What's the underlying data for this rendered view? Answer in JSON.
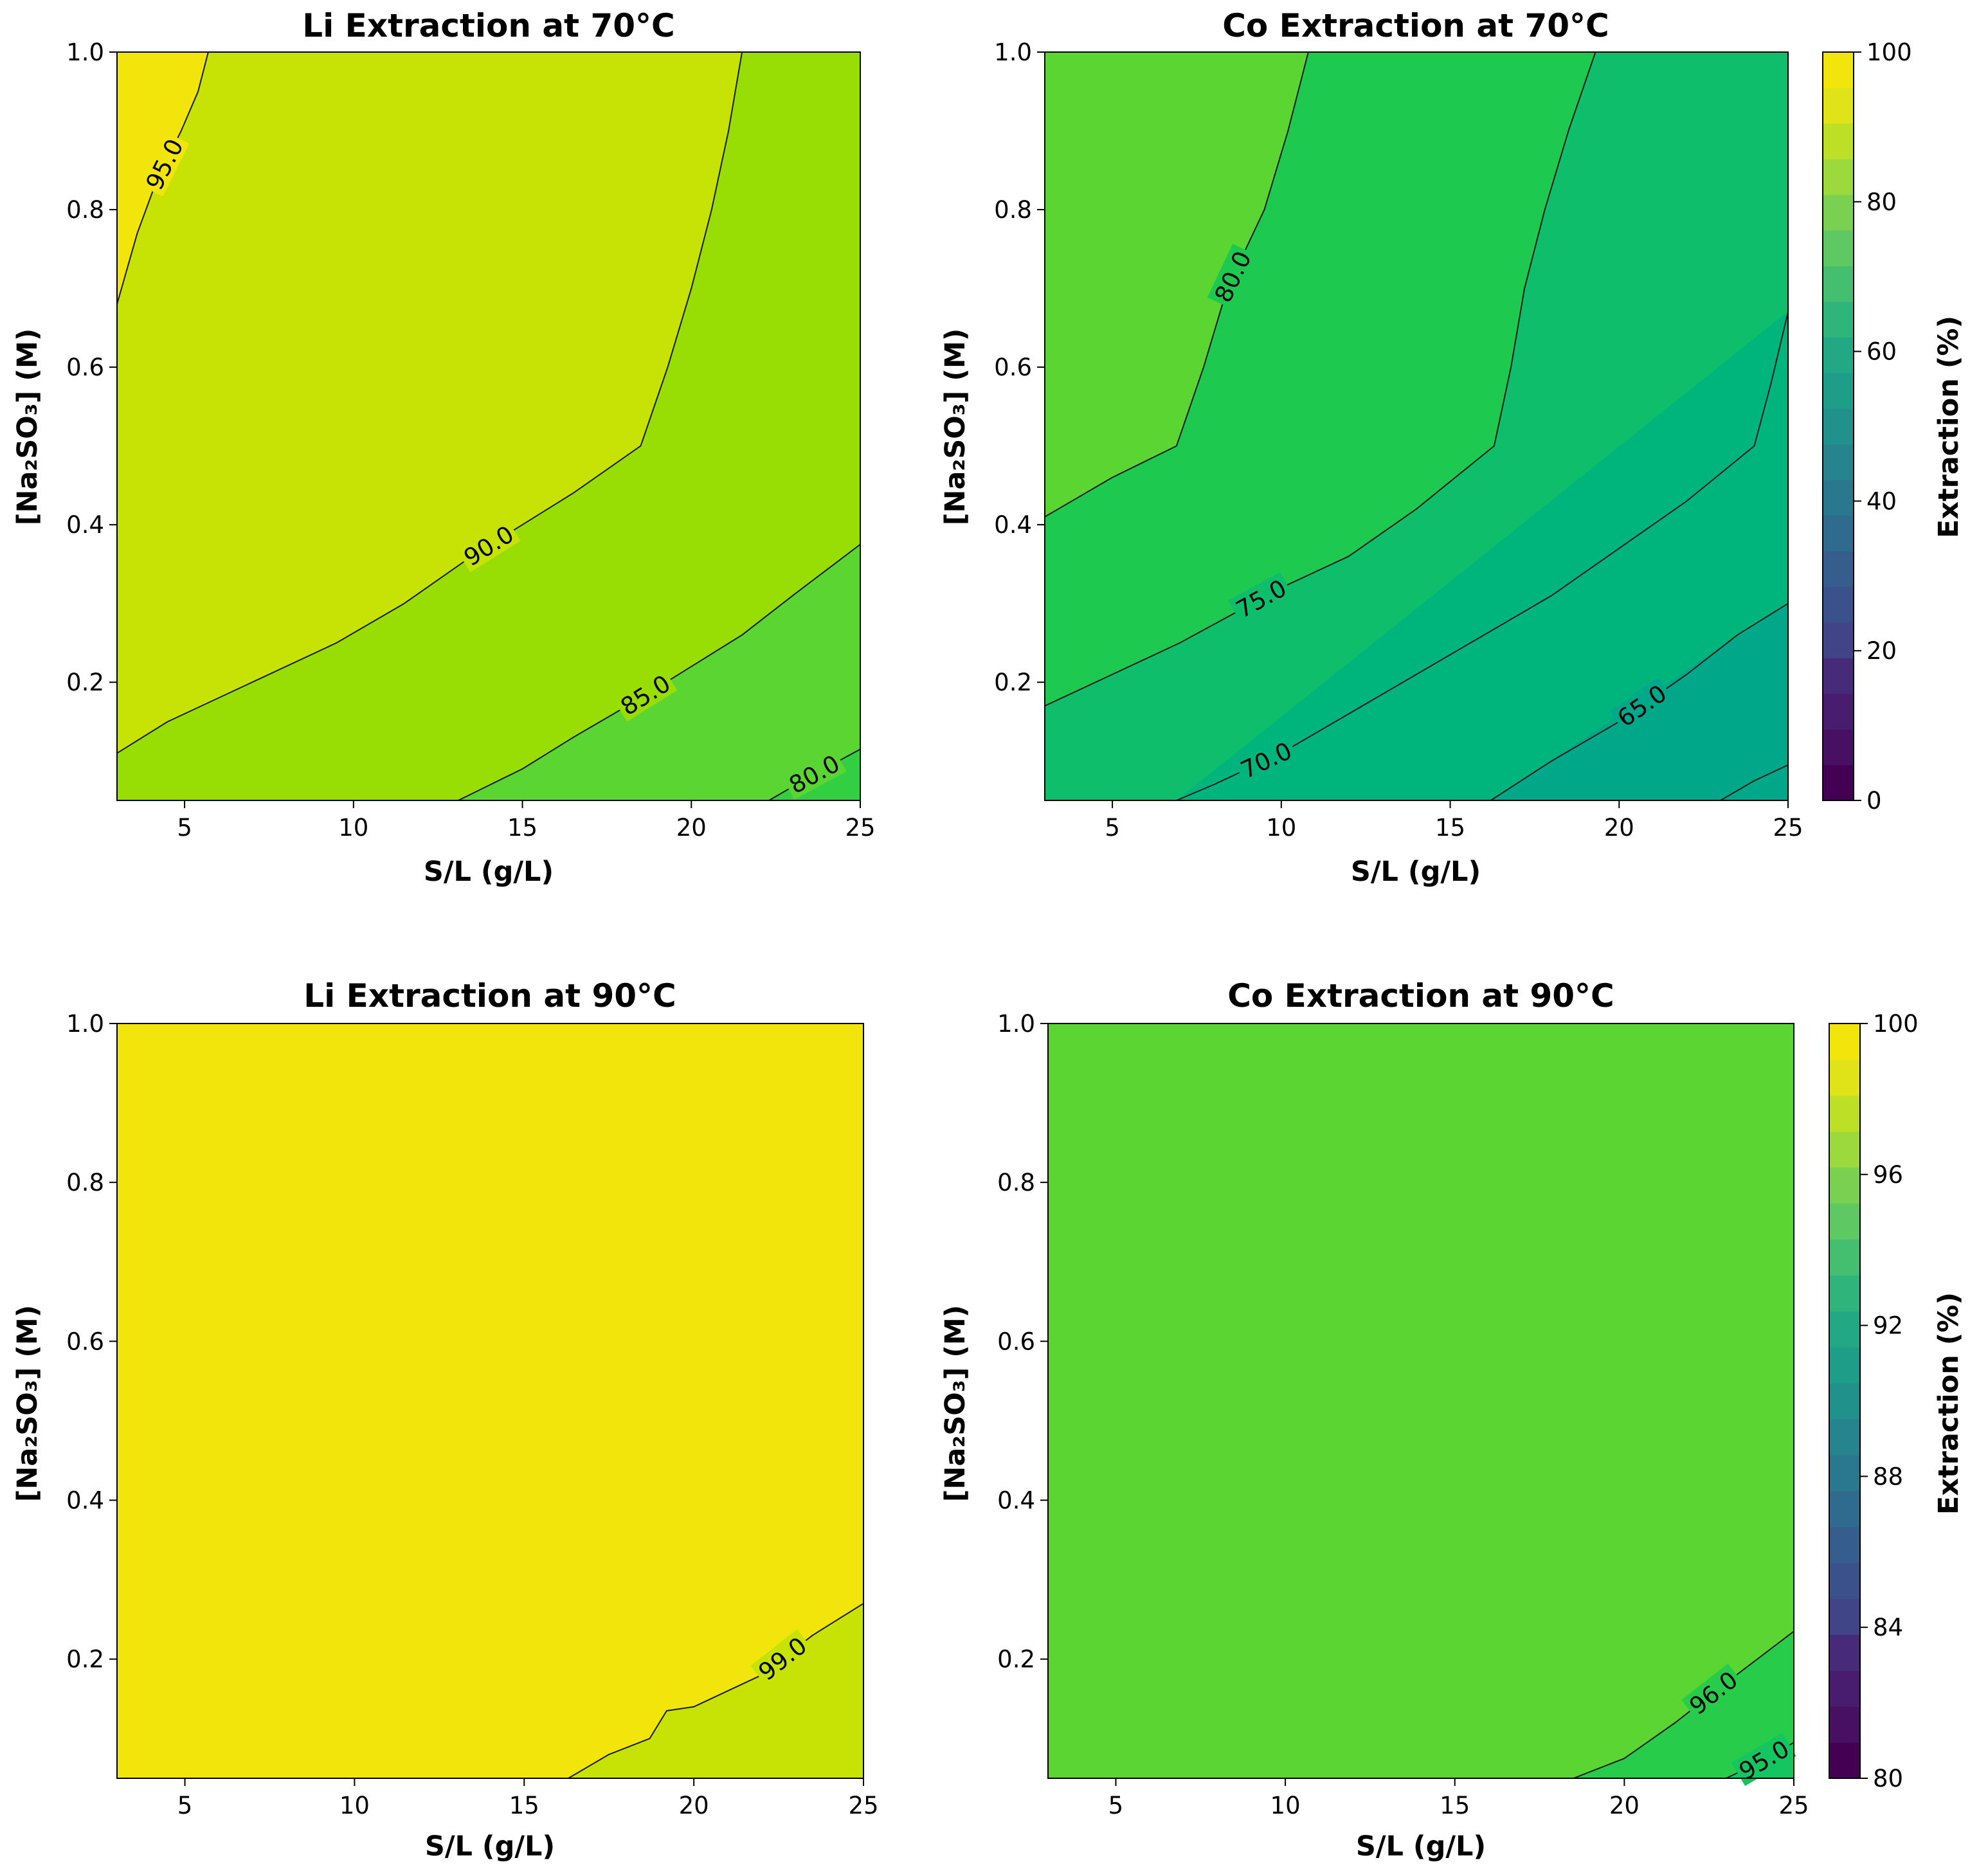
{
  "chart_data": [
    {
      "type": "contour",
      "title": "Li Extraction at 70°C",
      "xlabel": "S/L (g/L)",
      "ylabel": "[Na₂SO₃] (M)",
      "xlim": [
        3,
        25
      ],
      "ylim": [
        0.05,
        1.0
      ],
      "xticks": [
        "5",
        "10",
        "15",
        "20",
        "25"
      ],
      "yticks": [
        "0.2",
        "0.4",
        "0.6",
        "0.8",
        "1.0"
      ],
      "base_color": "#f1e50c",
      "regions": [
        {
          "level": "90-95",
          "color": "#c7e305"
        },
        {
          "level": "85-90",
          "color": "#98dd04"
        },
        {
          "level": "80-85",
          "color": "#5bd532"
        },
        {
          "level": "75-80",
          "color": "#33cf43"
        }
      ],
      "contours": [
        {
          "level": 95.0,
          "label": "95.0",
          "points": [
            [
              3,
              0.68
            ],
            [
              3.6,
              0.77
            ],
            [
              4.2,
              0.84
            ],
            [
              4.9,
              0.9
            ],
            [
              5.4,
              0.95
            ],
            [
              5.7,
              1.0
            ]
          ]
        },
        {
          "level": 90.0,
          "label": "90.0",
          "points": [
            [
              3,
              0.11
            ],
            [
              4.5,
              0.15
            ],
            [
              7,
              0.2
            ],
            [
              9.5,
              0.25
            ],
            [
              11.5,
              0.3
            ],
            [
              13.5,
              0.36
            ],
            [
              15,
              0.4
            ],
            [
              16.5,
              0.44
            ],
            [
              18.5,
              0.5
            ],
            [
              19.3,
              0.6
            ],
            [
              20,
              0.7
            ],
            [
              20.6,
              0.8
            ],
            [
              21.1,
              0.9
            ],
            [
              21.5,
              1.0
            ]
          ]
        },
        {
          "level": 85.0,
          "label": "85.0",
          "points": [
            [
              13.1,
              0.05
            ],
            [
              15,
              0.09
            ],
            [
              16.5,
              0.13
            ],
            [
              18.5,
              0.18
            ],
            [
              20,
              0.22
            ],
            [
              21.5,
              0.26
            ],
            [
              23,
              0.31
            ],
            [
              25,
              0.375
            ]
          ]
        },
        {
          "level": 80.0,
          "label": "80.0",
          "points": [
            [
              22.3,
              0.05
            ],
            [
              23.5,
              0.08
            ],
            [
              25,
              0.115
            ]
          ]
        }
      ]
    },
    {
      "type": "contour",
      "title": "Co Extraction at 70°C",
      "xlabel": "S/L (g/L)",
      "ylabel": "[Na₂SO₃] (M)",
      "xlim": [
        3,
        25
      ],
      "ylim": [
        0.05,
        1.0
      ],
      "xticks": [
        "5",
        "10",
        "15",
        "20",
        "25"
      ],
      "yticks": [
        "0.2",
        "0.4",
        "0.6",
        "0.8",
        "1.0"
      ],
      "base_color": "#5bd532",
      "regions": [
        {
          "level": "75-80",
          "color": "#1dc94e"
        },
        {
          "level": "70-75",
          "color": "#0fbe6a"
        },
        {
          "level": "65-70",
          "color": "#00b57c"
        },
        {
          "level": "60-65",
          "color": "#00a88a"
        }
      ],
      "contours": [
        {
          "level": 80.0,
          "label": "80.0",
          "points": [
            [
              10.8,
              1.0
            ],
            [
              10.2,
              0.9
            ],
            [
              9.5,
              0.8
            ],
            [
              8.4,
              0.7
            ],
            [
              7.7,
              0.6
            ],
            [
              6.9,
              0.5
            ],
            [
              5,
              0.46
            ],
            [
              3,
              0.41
            ]
          ]
        },
        {
          "level": 75.0,
          "label": "75.0",
          "points": [
            [
              19.3,
              1.0
            ],
            [
              18.5,
              0.9
            ],
            [
              17.8,
              0.8
            ],
            [
              17.2,
              0.7
            ],
            [
              16.8,
              0.6
            ],
            [
              16.3,
              0.5
            ],
            [
              14,
              0.42
            ],
            [
              12,
              0.36
            ],
            [
              10,
              0.32
            ],
            [
              7,
              0.25
            ],
            [
              5,
              0.21
            ],
            [
              3,
              0.17
            ]
          ]
        },
        {
          "level": 70.0,
          "label": "70.0",
          "points": [
            [
              25,
              0.67
            ],
            [
              24.5,
              0.58
            ],
            [
              24,
              0.5
            ],
            [
              22,
              0.43
            ],
            [
              20,
              0.37
            ],
            [
              18,
              0.31
            ],
            [
              16,
              0.26
            ],
            [
              14,
              0.21
            ],
            [
              12,
              0.16
            ],
            [
              10,
              0.11
            ],
            [
              8,
              0.07
            ],
            [
              6.9,
              0.05
            ]
          ]
        },
        {
          "level": 65.0,
          "label": "65.0",
          "points": [
            [
              25,
              0.3
            ],
            [
              23.5,
              0.26
            ],
            [
              22,
              0.21
            ],
            [
              20,
              0.15
            ],
            [
              18,
              0.1
            ],
            [
              16.2,
              0.05
            ]
          ]
        },
        {
          "level": 60.0,
          "label": "",
          "points": [
            [
              25,
              0.095
            ],
            [
              24,
              0.075
            ],
            [
              23,
              0.05
            ]
          ]
        }
      ]
    },
    {
      "type": "contour",
      "title": "Li Extraction at 90°C",
      "xlabel": "S/L (g/L)",
      "ylabel": "[Na₂SO₃] (M)",
      "xlim": [
        3,
        25
      ],
      "ylim": [
        0.05,
        1.0
      ],
      "xticks": [
        "5",
        "10",
        "15",
        "20",
        "25"
      ],
      "yticks": [
        "0.2",
        "0.4",
        "0.6",
        "0.8",
        "1.0"
      ],
      "base_color": "#f1e50c",
      "regions": [
        {
          "level": "98-99",
          "color": "#c7e305"
        }
      ],
      "contours": [
        {
          "level": 99.0,
          "label": "99.0",
          "points": [
            [
              16.3,
              0.05
            ],
            [
              17.5,
              0.08
            ],
            [
              18.7,
              0.1
            ],
            [
              19.2,
              0.135
            ],
            [
              20,
              0.14
            ],
            [
              22,
              0.18
            ],
            [
              23.5,
              0.23
            ],
            [
              25,
              0.27
            ]
          ]
        }
      ]
    },
    {
      "type": "contour",
      "title": "Co Extraction at 90°C",
      "xlabel": "S/L (g/L)",
      "ylabel": "[Na₂SO₃] (M)",
      "xlim": [
        3,
        25
      ],
      "ylim": [
        0.05,
        1.0
      ],
      "xticks": [
        "5",
        "10",
        "15",
        "20",
        "25"
      ],
      "yticks": [
        "0.2",
        "0.4",
        "0.6",
        "0.8",
        "1.0"
      ],
      "base_color": "#5bd532",
      "regions": [
        {
          "level": "95-96",
          "color": "#27cc4a"
        },
        {
          "level": "94-95",
          "color": "#14c560"
        }
      ],
      "contours": [
        {
          "level": 96.0,
          "label": "96.0",
          "points": [
            [
              18.5,
              0.05
            ],
            [
              20,
              0.075
            ],
            [
              21.5,
              0.12
            ],
            [
              23,
              0.17
            ],
            [
              25,
              0.235
            ]
          ]
        },
        {
          "level": 95.0,
          "label": "95.0",
          "points": [
            [
              23,
              0.05
            ],
            [
              24,
              0.07
            ],
            [
              25,
              0.095
            ]
          ]
        }
      ]
    }
  ],
  "colorbars": [
    {
      "label": "Extraction (%)",
      "ticks": [
        "0",
        "20",
        "40",
        "60",
        "80",
        "100"
      ],
      "range": [
        0,
        100
      ],
      "colors": [
        "#440154",
        "#471063",
        "#481d6f",
        "#472a79",
        "#414487",
        "#3b518b",
        "#355e8d",
        "#2f6b8e",
        "#2a788e",
        "#25848e",
        "#21918c",
        "#1e9d89",
        "#22a884",
        "#2fb47c",
        "#44bf70",
        "#5ec962",
        "#7ad151",
        "#9bd93c",
        "#bddf26",
        "#dfe318",
        "#f1e50c"
      ]
    },
    {
      "label": "Extraction (%)",
      "ticks": [
        "80",
        "84",
        "88",
        "92",
        "96",
        "100"
      ],
      "range": [
        80,
        100
      ],
      "colors": [
        "#440154",
        "#471063",
        "#481d6f",
        "#472a79",
        "#414487",
        "#3b518b",
        "#355e8d",
        "#2f6b8e",
        "#2a788e",
        "#25848e",
        "#21918c",
        "#1e9d89",
        "#22a884",
        "#2fb47c",
        "#44bf70",
        "#5ec962",
        "#7ad151",
        "#9bd93c",
        "#bddf26",
        "#dfe318",
        "#f1e50c"
      ]
    }
  ]
}
